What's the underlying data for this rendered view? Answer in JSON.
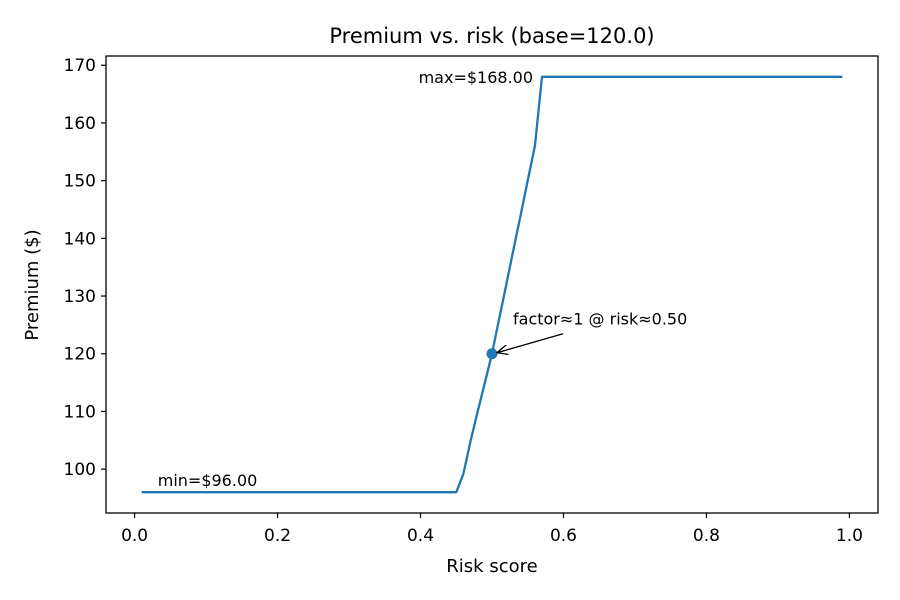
{
  "chart_data": {
    "type": "line",
    "title": "Premium vs. risk (base=120.0)",
    "xlabel": "Risk score",
    "ylabel": "Premium ($)",
    "xlim": [
      -0.04,
      1.04
    ],
    "ylim": [
      92.4,
      171.6
    ],
    "xticks": [
      0.0,
      0.2,
      0.4,
      0.6,
      0.8,
      1.0
    ],
    "xtick_labels": [
      "0.0",
      "0.2",
      "0.4",
      "0.6",
      "0.8",
      "1.0"
    ],
    "yticks": [
      100,
      110,
      120,
      130,
      140,
      150,
      160,
      170
    ],
    "ytick_labels": [
      "100",
      "110",
      "120",
      "130",
      "140",
      "150",
      "160",
      "170"
    ],
    "grid": false,
    "line_color": "#1f77b4",
    "series": [
      {
        "x": [
          0.01,
          0.45,
          0.46,
          0.47,
          0.48,
          0.49,
          0.5,
          0.51,
          0.52,
          0.53,
          0.54,
          0.55,
          0.56,
          0.57,
          0.99
        ],
        "y": [
          96.0,
          96.0,
          99.2,
          104.9,
          110.0,
          115.0,
          120.0,
          126.0,
          132.0,
          138.0,
          144.0,
          150.0,
          156.0,
          168.0,
          168.0
        ]
      }
    ],
    "marker": {
      "x": 0.5,
      "y": 120.0
    },
    "annotations": {
      "max": {
        "text": "max=$168.00",
        "x": 0.57,
        "y": 168.0
      },
      "min": {
        "text": "min=$96.00",
        "x": 0.01,
        "y": 96.0
      },
      "factor": {
        "text": "factor≈1 @ risk≈0.50",
        "x": 0.5,
        "y": 120.0
      }
    }
  }
}
